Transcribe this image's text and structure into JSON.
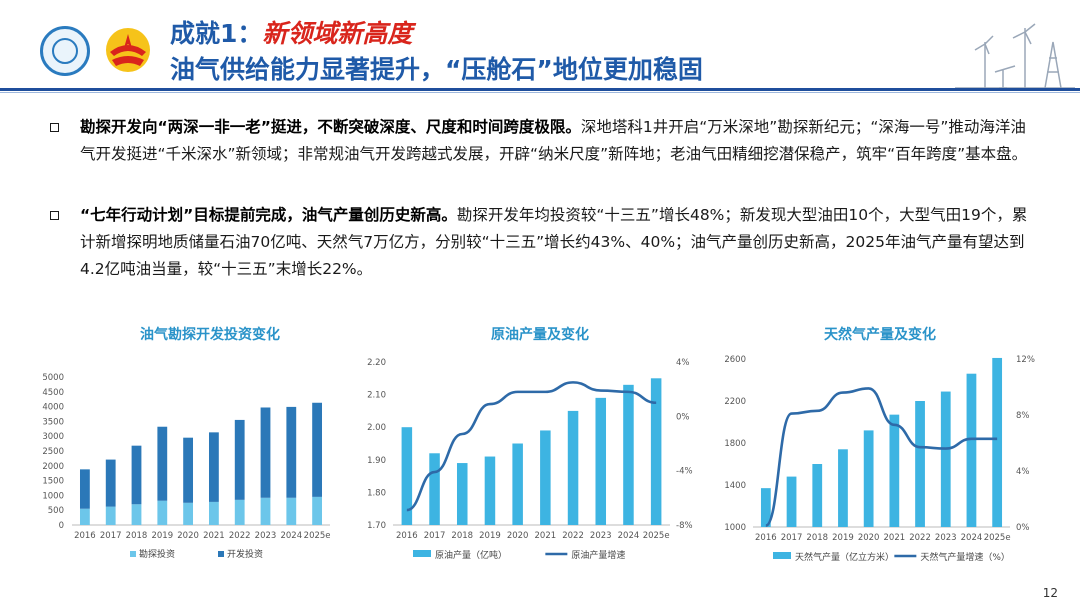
{
  "header": {
    "title_prefix": "成就1：",
    "title_accent": "新领域新高度",
    "subtitle": "油气供给能力显著提升，“压舱石”地位更加稳固"
  },
  "bullets": [
    {
      "bold": "勘探开发向“两深一非一老”挺进，不断突破深度、尺度和时间跨度极限。",
      "text": "深地塔科1井开启“万米深地”勘探新纪元；“深海一号”推动海洋油气开发挺进“千米深水”新领域；非常规油气开发跨越式发展，开辟“纳米尺度”新阵地；老油气田精细挖潜保稳产，筑牢“百年跨度”基本盘。"
    },
    {
      "bold": "“七年行动计划”目标提前完成，油气产量创历史新高。",
      "text": "勘探开发年均投资较“十三五”增长48%；新发现大型油田10个，大型气田19个，累计新增探明地质储量石油70亿吨、天然气7万亿方，分别较“十三五”增长约43%、40%；油气产量创历史新高，2025年油气产量有望达到4.2亿吨油当量，较“十三五”末增长22%。"
    }
  ],
  "page_number": "12",
  "colors": {
    "title_blue": "#1f5aa8",
    "accent_red": "#d9251c",
    "bar_dark": "#2b78b8",
    "bar_light": "#3db4e2",
    "line": "#2e6aa8",
    "chart_title": "#2a93c9"
  },
  "icons": {
    "logo_left": "institute-logo",
    "logo_right": "cnpc-logo",
    "decor": "oil-derrick-wind-turbine-icon"
  },
  "chart_data": [
    {
      "type": "bar",
      "stacked": true,
      "title": "油气勘探开发投资变化",
      "categories": [
        "2016",
        "2017",
        "2018",
        "2019",
        "2020",
        "2021",
        "2022",
        "2023",
        "2024",
        "2025e"
      ],
      "series": [
        {
          "name": "勘探投资",
          "values": [
            550,
            620,
            700,
            820,
            750,
            780,
            850,
            920,
            920,
            950
          ]
        },
        {
          "name": "开发投资",
          "values": [
            1330,
            1590,
            1980,
            2500,
            2200,
            2350,
            2700,
            3050,
            3070,
            3180
          ]
        }
      ],
      "ylim": [
        0,
        5000
      ],
      "yticks": [
        "0",
        "500",
        "1000",
        "1500",
        "2000",
        "2500",
        "3000",
        "3500",
        "4000",
        "4500",
        "5000"
      ],
      "legend": "bottom"
    },
    {
      "type": "bar+line",
      "title": "原油产量及变化",
      "categories": [
        "2016",
        "2017",
        "2018",
        "2019",
        "2020",
        "2021",
        "2022",
        "2023",
        "2024",
        "2025e"
      ],
      "bars": {
        "name": "原油产量（亿吨）",
        "values": [
          2.0,
          1.92,
          1.89,
          1.91,
          1.95,
          1.99,
          2.05,
          2.09,
          2.13,
          2.15
        ]
      },
      "line": {
        "name": "原油产量增速",
        "values": [
          -6.9,
          -4.1,
          -1.3,
          0.9,
          1.8,
          1.8,
          2.5,
          1.9,
          1.8,
          1.0
        ]
      },
      "ylim_left": [
        1.7,
        2.2
      ],
      "yticks_left": [
        "1.70",
        "1.80",
        "1.90",
        "2.00",
        "2.10",
        "2.20"
      ],
      "ylim_right": [
        -8,
        4
      ],
      "yticks_right": [
        "-8%",
        "-4%",
        "0%",
        "4%"
      ],
      "legend": "bottom"
    },
    {
      "type": "bar+line",
      "title": "天然气产量及变化",
      "categories": [
        "2016",
        "2017",
        "2018",
        "2019",
        "2020",
        "2021",
        "2022",
        "2023",
        "2024",
        "2025e"
      ],
      "bars": {
        "name": "天然气产量（亿立方米）",
        "values": [
          1370,
          1480,
          1600,
          1740,
          1920,
          2070,
          2200,
          2290,
          2460,
          2610
        ]
      },
      "line": {
        "name": "天然气产量增速（%）",
        "values": [
          0.1,
          8.1,
          8.3,
          9.6,
          9.9,
          7.3,
          5.7,
          5.6,
          6.3,
          6.3
        ]
      },
      "ylim_left": [
        1000,
        2600
      ],
      "yticks_left": [
        "1000",
        "1400",
        "1800",
        "2200",
        "2600"
      ],
      "ylim_right": [
        0,
        12
      ],
      "yticks_right": [
        "0%",
        "4%",
        "8%",
        "12%"
      ],
      "legend": "bottom"
    }
  ]
}
